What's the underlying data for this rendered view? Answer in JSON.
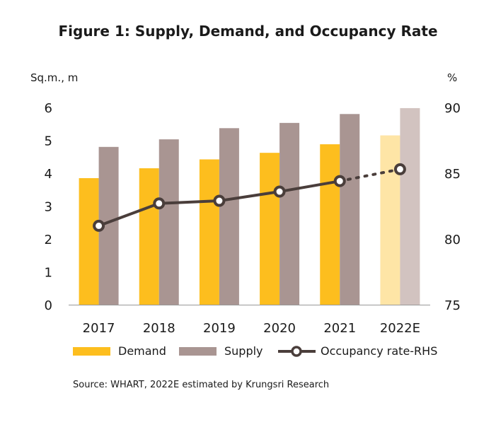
{
  "chart_data": {
    "type": "bar",
    "title": "Figure 1: Supply, Demand, and Occupancy Rate",
    "y_left_label": "Sq.m., m",
    "y_right_label": "%",
    "categories": [
      "2017",
      "2018",
      "2019",
      "2020",
      "2021",
      "2022E"
    ],
    "y_left_ticks": [
      "0",
      "1",
      "2",
      "3",
      "4",
      "5",
      "6"
    ],
    "y_right_ticks": [
      "75",
      "80",
      "85",
      "90"
    ],
    "ylim_left": [
      0,
      6
    ],
    "ylim_right": [
      75,
      90
    ],
    "series": [
      {
        "name": "Demand",
        "type": "bar",
        "axis": "left",
        "color": "#FDBE1E",
        "estimate_color": "#FEE5A6",
        "values": [
          3.85,
          4.15,
          4.42,
          4.62,
          4.88,
          5.15
        ]
      },
      {
        "name": "Supply",
        "type": "bar",
        "axis": "left",
        "color": "#A99592",
        "estimate_color": "#D2C3C0",
        "values": [
          4.8,
          5.03,
          5.37,
          5.53,
          5.8,
          5.98
        ]
      },
      {
        "name": "Occupancy rate-RHS",
        "type": "line",
        "axis": "right",
        "color": "#4A3E3B",
        "values": [
          81.0,
          82.7,
          82.9,
          83.6,
          84.4,
          85.3
        ]
      }
    ],
    "estimated_category": "2022E",
    "legend_position": "bottom"
  },
  "source": "Source: WHART, 2022E estimated by Krungsri Research"
}
